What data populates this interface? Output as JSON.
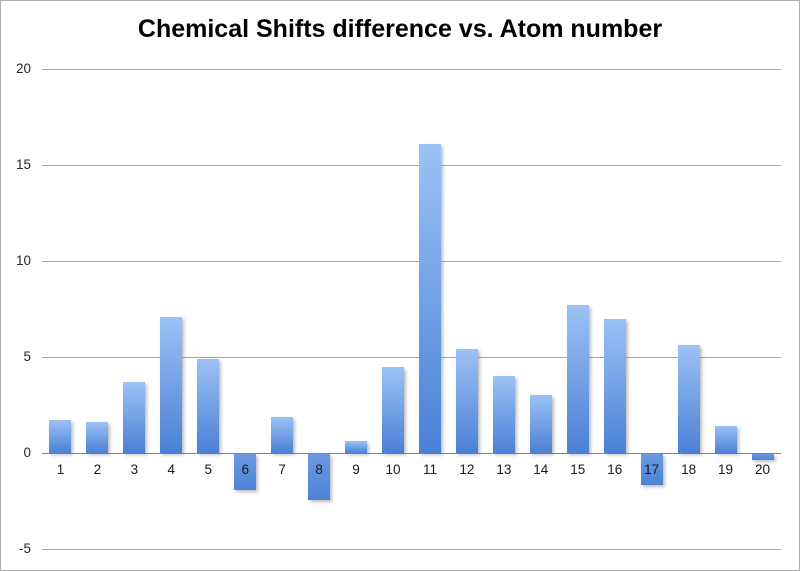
{
  "title": "Chemical Shifts difference vs. Atom number",
  "chart_data": {
    "type": "bar",
    "title": "Chemical Shifts difference vs. Atom number",
    "xlabel": "",
    "ylabel": "",
    "categories": [
      "1",
      "2",
      "3",
      "4",
      "5",
      "6",
      "7",
      "8",
      "9",
      "10",
      "11",
      "12",
      "13",
      "14",
      "15",
      "16",
      "17",
      "18",
      "19",
      "20"
    ],
    "values": [
      1.7,
      1.6,
      3.7,
      7.1,
      4.9,
      -1.9,
      1.9,
      -2.4,
      0.6,
      4.5,
      16.1,
      5.4,
      4.0,
      3.0,
      7.7,
      7.0,
      -1.6,
      5.6,
      1.4,
      -0.3
    ],
    "y_ticks": [
      20,
      15,
      10,
      5,
      0,
      -5
    ],
    "ylim": [
      -5,
      20
    ],
    "grid": true,
    "legend": false,
    "colors": {
      "bar_gradient_top": "#9cc2f5",
      "bar_gradient_bottom": "#4a80d5",
      "bar_neg_gradient_top": "#6b9ae2",
      "bar_neg_gradient_bottom": "#4d82d6",
      "gridline": "#a6a6a6",
      "zero_line": "#848484",
      "title_text": "#000000",
      "tick_text": "#262626",
      "background": "#ffffff",
      "chart_border": "#ababab"
    }
  }
}
